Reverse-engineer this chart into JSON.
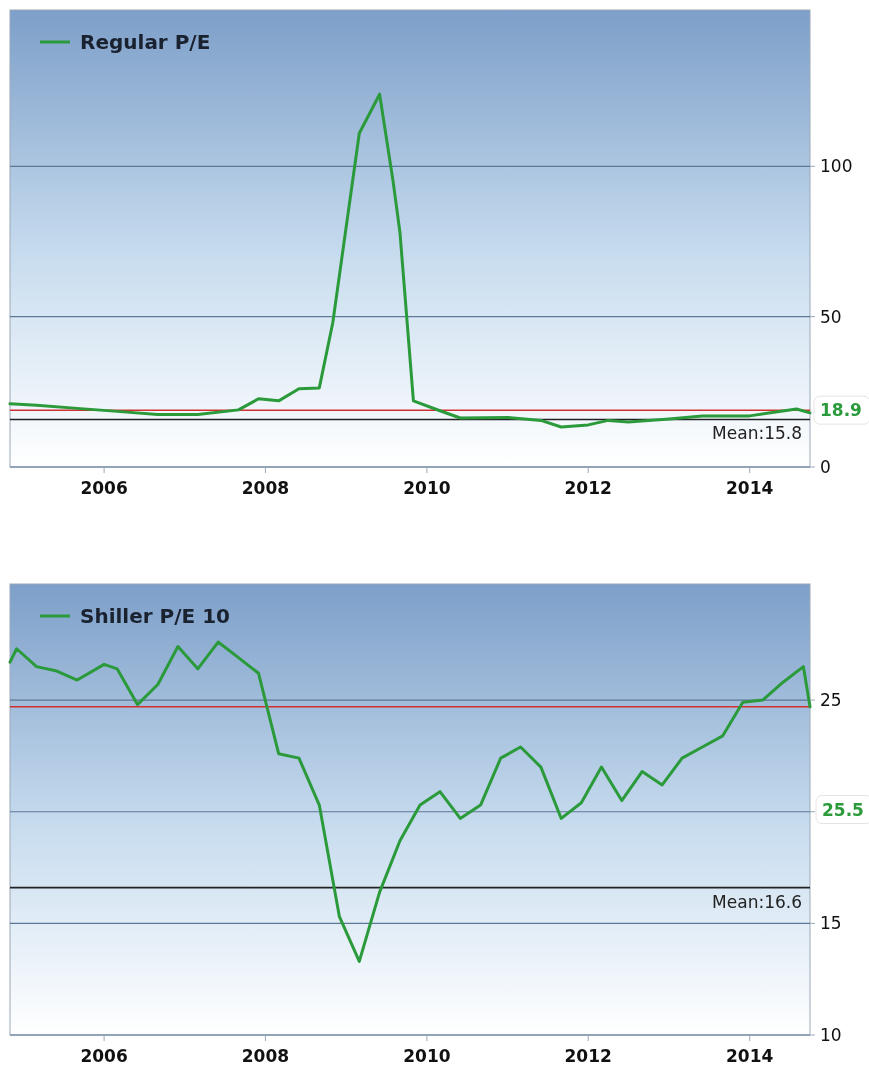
{
  "chart_data": [
    {
      "type": "line",
      "xlim": [
        "2004-11",
        "2014-10"
      ],
      "xticks": [
        "2006",
        "2008",
        "2010",
        "2012",
        "2014"
      ],
      "ylim": [
        0,
        152
      ],
      "yticks": [
        0,
        50,
        100
      ],
      "grid": "y",
      "legend": "top left",
      "marker": "none",
      "line_style": "solid",
      "series": [
        {
          "name": "Regular P/E",
          "color": "#2a9a3a",
          "x": [
            "2004-11",
            "2005-03",
            "2005-09",
            "2006-03",
            "2006-09",
            "2007-03",
            "2007-09",
            "2007-12",
            "2008-03",
            "2008-06",
            "2008-09",
            "2008-11",
            "2009-03",
            "2009-06",
            "2009-08",
            "2009-09",
            "2009-11",
            "2010-03",
            "2010-06",
            "2011-01",
            "2011-06",
            "2011-09",
            "2012-01",
            "2012-04",
            "2012-07",
            "2013-01",
            "2013-06",
            "2014-01",
            "2014-08",
            "2014-10"
          ],
          "values": [
            21,
            20.5,
            19.5,
            18.5,
            17.5,
            17.5,
            19,
            22.7,
            22,
            26,
            26.3,
            48,
            111,
            124,
            95,
            78,
            22,
            18.7,
            16.3,
            16.5,
            15.5,
            13.3,
            14,
            15.5,
            15,
            16,
            17,
            17,
            19.3,
            18
          ]
        }
      ],
      "ref_lines": [
        {
          "axis": "y",
          "value": 18.9,
          "label": "18.9",
          "color": "#d03030"
        },
        {
          "axis": "y",
          "value": 15.8,
          "label": "Mean:15.8",
          "color": "#222222"
        }
      ]
    },
    {
      "type": "line",
      "xlim": [
        "2004-11",
        "2014-10"
      ],
      "xticks": [
        "2006",
        "2008",
        "2010",
        "2012",
        "2014"
      ],
      "ylim": [
        10,
        30.2
      ],
      "yticks": [
        10,
        15,
        {
          "value": 20,
          "label": null
        },
        25
      ],
      "grid": "y",
      "legend": "top left",
      "marker": "none",
      "line_style": "solid",
      "series": [
        {
          "name": "Shiller P/E 10",
          "color": "#2a9a3a",
          "x": [
            "2004-11",
            "2004-12",
            "2005-03",
            "2005-06",
            "2005-09",
            "2006-01",
            "2006-03",
            "2006-06",
            "2006-09",
            "2006-12",
            "2007-03",
            "2007-06",
            "2007-09",
            "2007-12",
            "2008-03",
            "2008-06",
            "2008-09",
            "2008-12",
            "2009-03",
            "2009-06",
            "2009-09",
            "2009-12",
            "2010-03",
            "2010-06",
            "2010-09",
            "2010-12",
            "2011-03",
            "2011-06",
            "2011-09",
            "2011-12",
            "2012-03",
            "2012-06",
            "2012-09",
            "2012-12",
            "2013-03",
            "2013-06",
            "2013-09",
            "2013-12",
            "2014-03",
            "2014-06",
            "2014-09",
            "2014-10"
          ],
          "values": [
            26.7,
            27.3,
            26.5,
            26.3,
            25.9,
            26.6,
            26.4,
            24.8,
            25.7,
            27.4,
            26.4,
            27.6,
            26.9,
            26.2,
            22.6,
            22.4,
            20.3,
            15.3,
            13.3,
            16.4,
            18.7,
            20.3,
            20.9,
            19.7,
            20.3,
            22.4,
            22.9,
            22,
            19.7,
            20.4,
            22,
            20.5,
            21.8,
            21.2,
            22.4,
            22.9,
            23.4,
            24.9,
            25,
            25.8,
            26.5,
            24.7
          ]
        }
      ],
      "ref_lines": [
        {
          "axis": "y",
          "value": 24.7,
          "color": "#d03030"
        },
        {
          "axis": "y",
          "value": 16.6,
          "label": "Mean:16.6",
          "color": "#222222"
        }
      ],
      "annotations": [
        "25.5"
      ]
    }
  ]
}
